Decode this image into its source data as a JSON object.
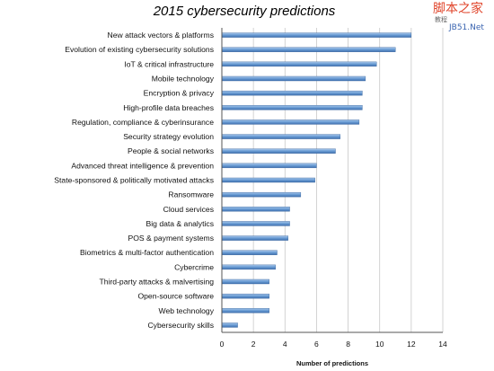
{
  "watermark": {
    "line1": "脚本之家",
    "line2": "JB51.Net",
    "small": "教程"
  },
  "chart_data": {
    "type": "bar",
    "orientation": "horizontal",
    "title": "2015 cybersecurity predictions",
    "xlabel": "Number of predictions",
    "ylabel": "",
    "xlim": [
      0,
      14
    ],
    "xticks": [
      0,
      2,
      4,
      6,
      8,
      10,
      12,
      14
    ],
    "grid": true,
    "bar_color": "#5b8fc9",
    "categories": [
      "New attack vectors & platforms",
      "Evolution of existing cybersecurity solutions",
      "IoT & critical infrastructure",
      "Mobile technology",
      "Encryption & privacy",
      "High-profile data breaches",
      "Regulation, compliance & cyberinsurance",
      "Security strategy evolution",
      "People & social networks",
      "Advanced threat intelligence & prevention",
      "State-sponsored & politically motivated attacks",
      "Ransomware",
      "Cloud services",
      "Big data & analytics",
      "POS & payment systems",
      "Biometrics & multi-factor authentication",
      "Cybercrime",
      "Third-party attacks & malvertising",
      "Open-source software",
      "Web technology",
      "Cybersecurity skills"
    ],
    "values": [
      12,
      11,
      9.8,
      9.1,
      8.9,
      8.9,
      8.7,
      7.5,
      7.2,
      6.0,
      5.9,
      5.0,
      4.3,
      4.3,
      4.2,
      3.5,
      3.4,
      3.0,
      3.0,
      3.0,
      1.0
    ]
  }
}
